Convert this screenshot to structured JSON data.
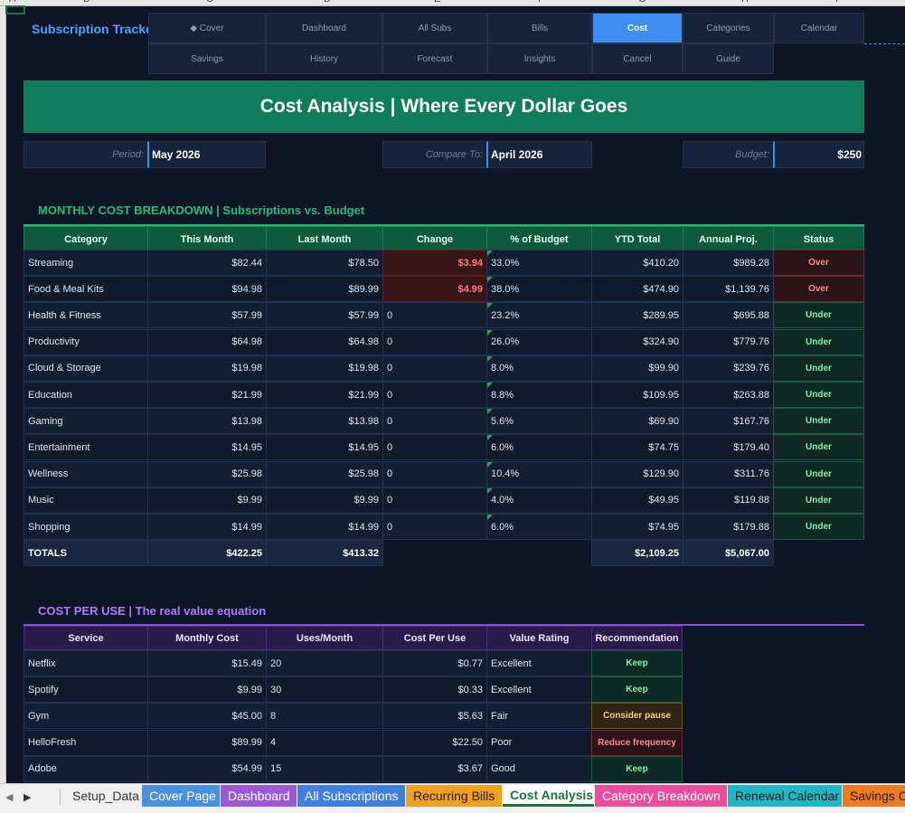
{
  "spreadsheet": {
    "column_letters": [
      "A",
      "B",
      "C",
      "D",
      "E",
      "F",
      "G",
      "H",
      "I"
    ]
  },
  "nav": {
    "brand": "Subscription Tracker",
    "row1": [
      "◆ Cover",
      "Dashboard",
      "All Subs",
      "Bills",
      "Cost",
      "Categories",
      "Calendar"
    ],
    "row2": [
      "Savings",
      "History",
      "Forecast",
      "Insights",
      "Cancel",
      "Guide"
    ],
    "active": "Cost"
  },
  "title": "Cost Analysis  |  Where Every Dollar Goes",
  "meta": {
    "period_label": "Period:",
    "period_value": "May 2026",
    "compare_label": "Compare To:",
    "compare_value": "April 2026",
    "budget_label": "Budget:",
    "budget_value": "$250"
  },
  "breakdown": {
    "heading": "MONTHLY COST BREAKDOWN  |  Subscriptions vs. Budget",
    "headers": [
      "Category",
      "This Month",
      "Last Month",
      "Change",
      "% of Budget",
      "YTD Total",
      "Annual Proj.",
      "Status"
    ],
    "rows": [
      {
        "category": "Streaming",
        "this_month": "$82.44",
        "last_month": "$78.50",
        "change": "$3.94",
        "pct": "33.0%",
        "ytd": "$410.20",
        "annual": "$989.28",
        "status": "Over"
      },
      {
        "category": "Food & Meal Kits",
        "this_month": "$94.98",
        "last_month": "$89.99",
        "change": "$4.99",
        "pct": "38.0%",
        "ytd": "$474.90",
        "annual": "$1,139.76",
        "status": "Over"
      },
      {
        "category": "Health & Fitness",
        "this_month": "$57.99",
        "last_month": "$57.99",
        "change": "0",
        "pct": "23.2%",
        "ytd": "$289.95",
        "annual": "$695.88",
        "status": "Under"
      },
      {
        "category": "Productivity",
        "this_month": "$64.98",
        "last_month": "$64.98",
        "change": "0",
        "pct": "26.0%",
        "ytd": "$324.90",
        "annual": "$779.76",
        "status": "Under"
      },
      {
        "category": "Cloud & Storage",
        "this_month": "$19.98",
        "last_month": "$19.98",
        "change": "0",
        "pct": "8.0%",
        "ytd": "$99.90",
        "annual": "$239.76",
        "status": "Under"
      },
      {
        "category": "Education",
        "this_month": "$21.99",
        "last_month": "$21.99",
        "change": "0",
        "pct": "8.8%",
        "ytd": "$109.95",
        "annual": "$263.88",
        "status": "Under"
      },
      {
        "category": "Gaming",
        "this_month": "$13.98",
        "last_month": "$13.98",
        "change": "0",
        "pct": "5.6%",
        "ytd": "$69.90",
        "annual": "$167.76",
        "status": "Under"
      },
      {
        "category": "Entertainment",
        "this_month": "$14.95",
        "last_month": "$14.95",
        "change": "0",
        "pct": "6.0%",
        "ytd": "$74.75",
        "annual": "$179.40",
        "status": "Under"
      },
      {
        "category": "Wellness",
        "this_month": "$25.98",
        "last_month": "$25.98",
        "change": "0",
        "pct": "10.4%",
        "ytd": "$129.90",
        "annual": "$311.76",
        "status": "Under"
      },
      {
        "category": "Music",
        "this_month": "$9.99",
        "last_month": "$9.99",
        "change": "0",
        "pct": "4.0%",
        "ytd": "$49.95",
        "annual": "$119.88",
        "status": "Under"
      },
      {
        "category": "Shopping",
        "this_month": "$14.99",
        "last_month": "$14.99",
        "change": "0",
        "pct": "6.0%",
        "ytd": "$74.95",
        "annual": "$179.88",
        "status": "Under"
      }
    ],
    "totals": {
      "label": "TOTALS",
      "this_month": "$422.25",
      "last_month": "$413.32",
      "ytd": "$2,109.25",
      "annual": "$5,067.00"
    }
  },
  "cost_per_use": {
    "heading": "COST PER USE  |  The real value equation",
    "headers": [
      "Service",
      "Monthly Cost",
      "Uses/Month",
      "Cost Per Use",
      "Value Rating",
      "Recommendation"
    ],
    "rows": [
      {
        "service": "Netflix",
        "monthly": "$15.49",
        "uses": "20",
        "cpu": "$0.77",
        "rating": "Excellent",
        "rec": "Keep",
        "rec_type": "keep"
      },
      {
        "service": "Spotify",
        "monthly": "$9.99",
        "uses": "30",
        "cpu": "$0.33",
        "rating": "Excellent",
        "rec": "Keep",
        "rec_type": "keep"
      },
      {
        "service": "Gym",
        "monthly": "$45.00",
        "uses": "8",
        "cpu": "$5.63",
        "rating": "Fair",
        "rec": "Consider pause",
        "rec_type": "pause"
      },
      {
        "service": "HelloFresh",
        "monthly": "$89.99",
        "uses": "4",
        "cpu": "$22.50",
        "rating": "Poor",
        "rec": "Reduce frequency",
        "rec_type": "reduce"
      },
      {
        "service": "Adobe",
        "monthly": "$54.99",
        "uses": "15",
        "cpu": "$3.67",
        "rating": "Good",
        "rec": "Keep",
        "rec_type": "keep"
      }
    ]
  },
  "sheet_tabs": [
    {
      "label": "Setup_Data",
      "bg": "#f0f0f0",
      "fg": "#333333"
    },
    {
      "label": "Cover Page",
      "bg": "#4a90e2",
      "fg": "#ffffff"
    },
    {
      "label": "Dashboard",
      "bg": "#9b59d6",
      "fg": "#ffffff"
    },
    {
      "label": "All Subscriptions",
      "bg": "#3f7fe0",
      "fg": "#ffffff"
    },
    {
      "label": "Recurring Bills",
      "bg": "#f0a020",
      "fg": "#222222"
    },
    {
      "label": "Cost Analysis",
      "bg": "#ffffff",
      "fg": "#1e7145",
      "active": true
    },
    {
      "label": "Category Breakdown",
      "bg": "#e94e9a",
      "fg": "#ffffff"
    },
    {
      "label": "Renewal Calendar",
      "bg": "#1fb5c4",
      "fg": "#222222"
    },
    {
      "label": "Savings O",
      "bg": "#f07a20",
      "fg": "#222222"
    }
  ],
  "colors": {
    "breakdown_accent": "#1fbf7a",
    "breakdown_header_bg": "#0f5a3f",
    "cpu_accent": "#9b59ff",
    "cpu_header_bg": "#2a1a4a"
  }
}
